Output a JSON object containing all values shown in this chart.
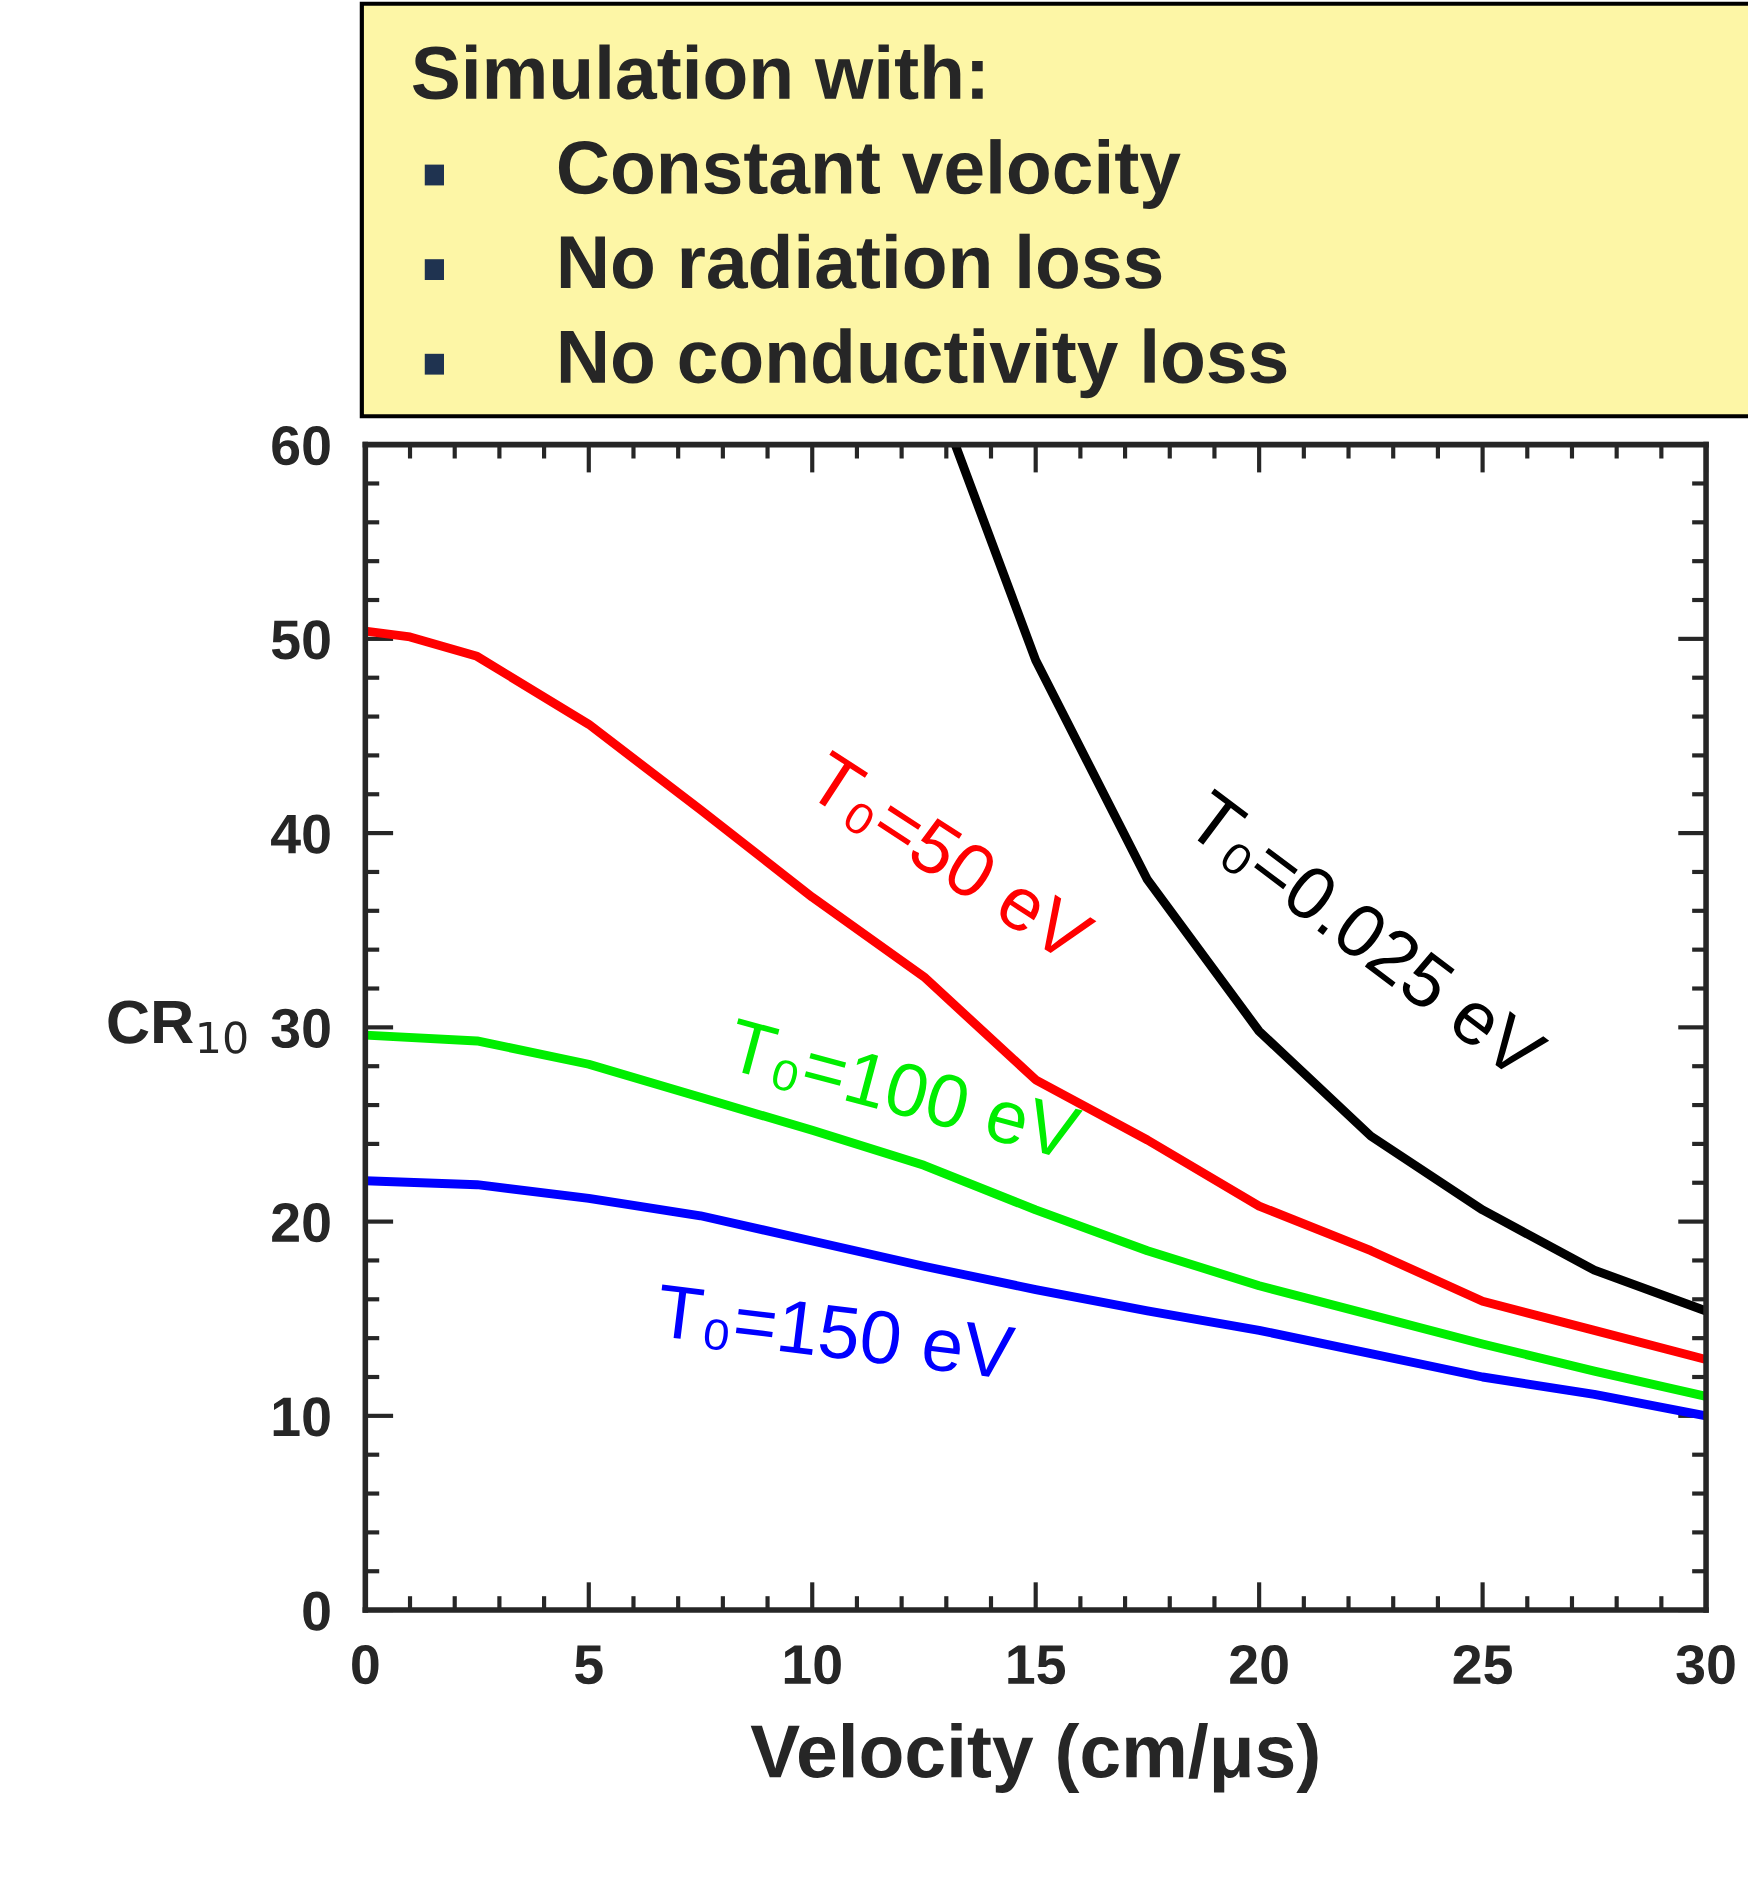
{
  "chart_data": {
    "type": "line",
    "xlabel": "Velocity (cm/μs)",
    "ylabel": "CR$_{10}$",
    "annotations": [
      "Simulation with:",
      "Constant velocity",
      "No radiation loss",
      "No conductivity loss"
    ],
    "xlim": [
      0,
      30
    ],
    "ylim": [
      0,
      60
    ],
    "xticks": [
      0,
      5,
      10,
      15,
      20,
      25,
      30
    ],
    "yticks": [
      0,
      10,
      20,
      30,
      40,
      50,
      60
    ],
    "grid": false,
    "legend": false,
    "marker": "none",
    "line_style": "solid",
    "series": [
      {
        "name": "T₀=0.025 eV",
        "color": "#000000",
        "x": [
          13.2,
          15,
          17.5,
          20,
          22.5,
          25,
          27.5,
          30
        ],
        "values": [
          60,
          48.9,
          37.6,
          29.8,
          24.4,
          20.6,
          17.5,
          15.4
        ]
      },
      {
        "name": "T₀=50 eV",
        "color": "#ff0000",
        "x": [
          0,
          1,
          2.5,
          5,
          7.5,
          10,
          12.5,
          15,
          17.5,
          20,
          22.5,
          25,
          27.5,
          30
        ],
        "values": [
          50.4,
          50.1,
          49.1,
          45.6,
          41.2,
          36.7,
          32.6,
          27.3,
          24.2,
          20.8,
          18.5,
          15.9,
          14.4,
          12.9
        ]
      },
      {
        "name": "T₀=100 eV",
        "color": "#00ee00",
        "x": [
          0,
          2.5,
          5,
          7.5,
          10,
          12.5,
          15,
          17.5,
          20,
          22.5,
          25,
          27.5,
          30
        ],
        "values": [
          29.6,
          29.3,
          28.1,
          26.4,
          24.7,
          22.9,
          20.6,
          18.5,
          16.7,
          15.2,
          13.7,
          12.3,
          11.0
        ]
      },
      {
        "name": "T₀=150 eV",
        "color": "#0000ff",
        "x": [
          0,
          2.5,
          5,
          7.5,
          10,
          12.5,
          15,
          17.5,
          20,
          22.5,
          25,
          27.5,
          30
        ],
        "values": [
          22.1,
          21.9,
          21.2,
          20.3,
          19.0,
          17.7,
          16.5,
          15.4,
          14.4,
          13.2,
          12.0,
          11.1,
          10.0
        ]
      }
    ]
  }
}
